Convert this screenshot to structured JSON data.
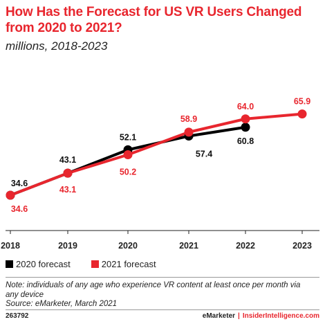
{
  "title": "How Has the Forecast for US VR Users Changed from 2020 to 2021?",
  "subtitle": "millions, 2018-2023",
  "legend": {
    "series_2020": "2020 forecast",
    "series_2021": "2021 forecast"
  },
  "note": "Note: individuals of any age who experience VR content at least once per month via any device",
  "source": "Source: eMarketer, March 2021",
  "footer": {
    "id": "263792",
    "brand_emarketer": "eMarketer",
    "separator": "|",
    "brand_insider": "InsiderIntelligence.com"
  },
  "colors": {
    "series_2020": "#000000",
    "series_2021": "#e8262e",
    "title": "#e8262e"
  },
  "chart_data": {
    "type": "line",
    "categories": [
      "2018",
      "2019",
      "2020",
      "2021",
      "2022",
      "2023"
    ],
    "ylim": [
      30,
      70
    ],
    "grid": false,
    "legend_position": "bottom-left",
    "series": [
      {
        "name": "2020 forecast",
        "color": "#000000",
        "values": [
          34.6,
          43.1,
          52.1,
          57.4,
          60.8,
          null
        ],
        "labels": [
          "34.6",
          "43.1",
          "52.1",
          "57.4",
          "60.8",
          ""
        ]
      },
      {
        "name": "2021 forecast",
        "color": "#e8262e",
        "values": [
          34.6,
          43.1,
          50.2,
          58.9,
          64.0,
          65.9
        ],
        "labels": [
          "34.6",
          "43.1",
          "50.2",
          "58.9",
          "64.0",
          "65.9"
        ]
      }
    ]
  }
}
